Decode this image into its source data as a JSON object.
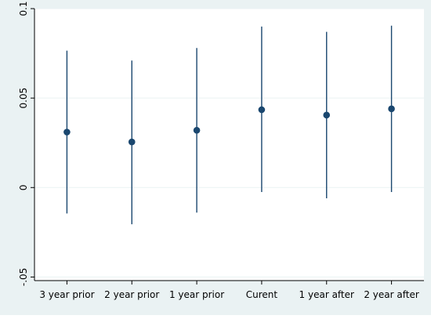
{
  "chart_data": {
    "type": "scatter",
    "title": "",
    "xlabel": "",
    "ylabel": "",
    "categories": [
      "3 year prior",
      "2 year prior",
      "1 year prior",
      "Curent",
      "1 year after",
      "2 year after"
    ],
    "series": [
      {
        "points": [
          0.031,
          0.0255,
          0.032,
          0.0435,
          0.0405,
          0.044
        ],
        "ci_lower": [
          -0.0145,
          -0.0205,
          -0.014,
          -0.0025,
          -0.006,
          -0.0025
        ],
        "ci_upper": [
          0.0765,
          0.071,
          0.078,
          0.09,
          0.087,
          0.0905
        ]
      }
    ],
    "ylim": [
      -0.052,
      0.1
    ],
    "yticks": [
      -0.05,
      0,
      0.05,
      0.1
    ],
    "ytick_labels": [
      "-.05",
      "0",
      "0.05",
      "0.1"
    ],
    "grid": true,
    "colors": {
      "outer_background": "#eaf2f3",
      "plot_background": "#ffffff",
      "marker": "#1a476f",
      "gridline": "#eaf2f3",
      "axis": "#000000",
      "text": "#000000"
    }
  }
}
